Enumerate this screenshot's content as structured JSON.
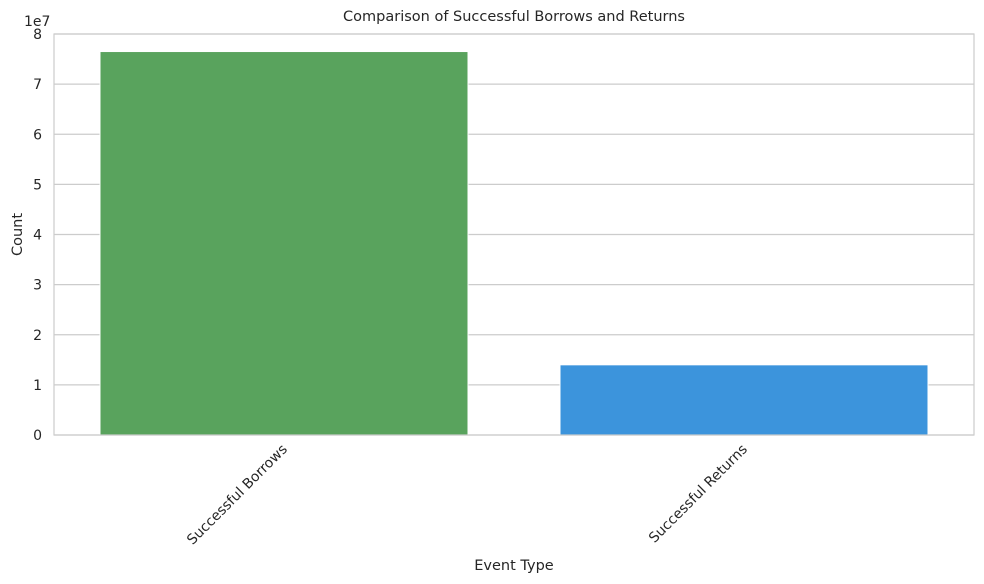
{
  "chart_data": {
    "type": "bar",
    "title": "Comparison of Successful Borrows and Returns",
    "xlabel": "Event Type",
    "ylabel": "Count",
    "categories": [
      "Successful Borrows",
      "Successful Returns"
    ],
    "values": [
      76500000,
      14000000
    ],
    "colors": [
      "#59a35d",
      "#3c94dc"
    ],
    "ylim": [
      0,
      80000000
    ],
    "y_ticks": [
      "0",
      "1",
      "2",
      "3",
      "4",
      "5",
      "6",
      "7",
      "8"
    ],
    "y_tick_values": [
      0,
      10000000,
      20000000,
      30000000,
      40000000,
      50000000,
      60000000,
      70000000,
      80000000
    ],
    "y_offset_label": "1e7",
    "grid": "horizontal"
  }
}
